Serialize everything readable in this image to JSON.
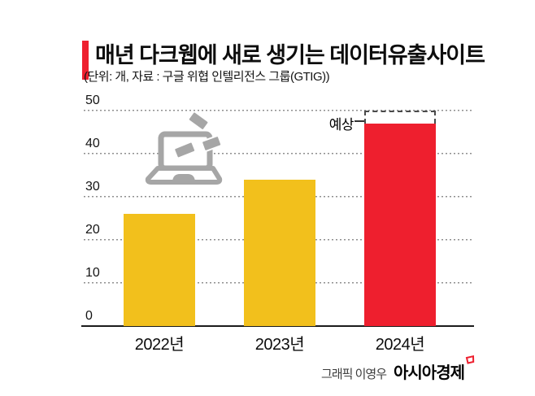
{
  "header": {
    "title": "매년 다크웹에 새로 생기는 데이터유출사이트",
    "subtitle": "(단위: 개, 자료 : 구글 위협 인텔리전스 그룹(GTIG))"
  },
  "colors": {
    "accent": "#ee1f2e",
    "bar_yellow": "#f2c01c",
    "bar_red": "#ee1f2e",
    "icon_gray": "#a6a6a6",
    "gridline": "#8f8f8f"
  },
  "chart_data": {
    "type": "bar",
    "title": "매년 다크웹에 새로 생기는 데이터유출사이트",
    "unit_note": "단위: 개",
    "source": "구글 위협 인텔리전스 그룹(GTIG)",
    "categories": [
      "2022년",
      "2023년",
      "2024년"
    ],
    "values": [
      26,
      34,
      47
    ],
    "bar_colors": [
      "#f2c01c",
      "#f2c01c",
      "#ee1f2e"
    ],
    "ylim": [
      0,
      50
    ],
    "yticks": [
      0,
      10,
      20,
      30,
      40,
      50
    ],
    "grid": "dotted horizontal",
    "legend": "none",
    "annotation": {
      "label": "예상",
      "target_category": "2024년",
      "forecast_top": 50
    }
  },
  "icon": {
    "name": "laptop-data-leak-icon"
  },
  "footer": {
    "credit": "그래픽 이영우",
    "brand": "아시아경제"
  }
}
